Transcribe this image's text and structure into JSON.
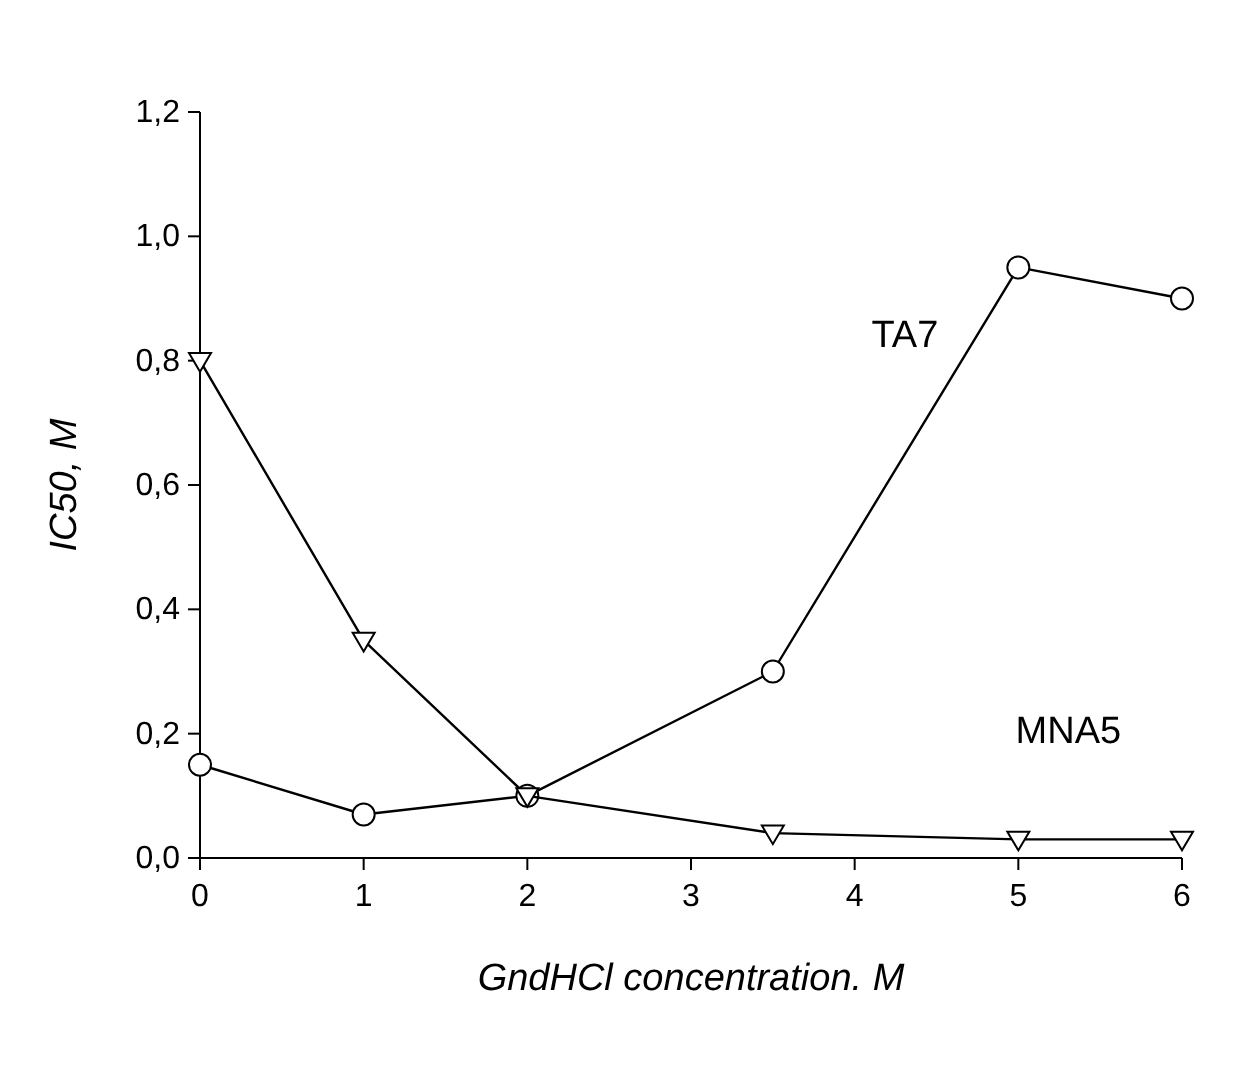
{
  "chart_data": {
    "type": "line",
    "xlabel": "GndHCl concentration. M",
    "ylabel": "IC50, M",
    "xlim": [
      0,
      6
    ],
    "xticks": [
      0,
      1,
      2,
      3,
      4,
      5,
      6
    ],
    "ylim": [
      0,
      1.2
    ],
    "yticks": [
      {
        "value": 0,
        "label": "0,0"
      },
      {
        "value": 0.2,
        "label": "0,2"
      },
      {
        "value": 0.4,
        "label": "0,4"
      },
      {
        "value": 0.6,
        "label": "0,6"
      },
      {
        "value": 0.8,
        "label": "0,8"
      },
      {
        "value": 1.0,
        "label": "1,0"
      },
      {
        "value": 1.2,
        "label": "1,2"
      }
    ],
    "grid": false,
    "line_style": "solid",
    "series": [
      {
        "name": "TA7",
        "color": "#000000",
        "marker": "circle",
        "x": [
          0,
          1,
          2,
          3.5,
          5,
          6
        ],
        "values": [
          0.15,
          0.07,
          0.1,
          0.3,
          0.95,
          0.9
        ]
      },
      {
        "name": "MNA5",
        "color": "#000000",
        "marker": "triangle",
        "x": [
          0,
          1,
          2,
          3.5,
          5,
          6
        ],
        "values": [
          0.8,
          0.35,
          0.1,
          0.04,
          0.03,
          0.03
        ]
      }
    ]
  }
}
